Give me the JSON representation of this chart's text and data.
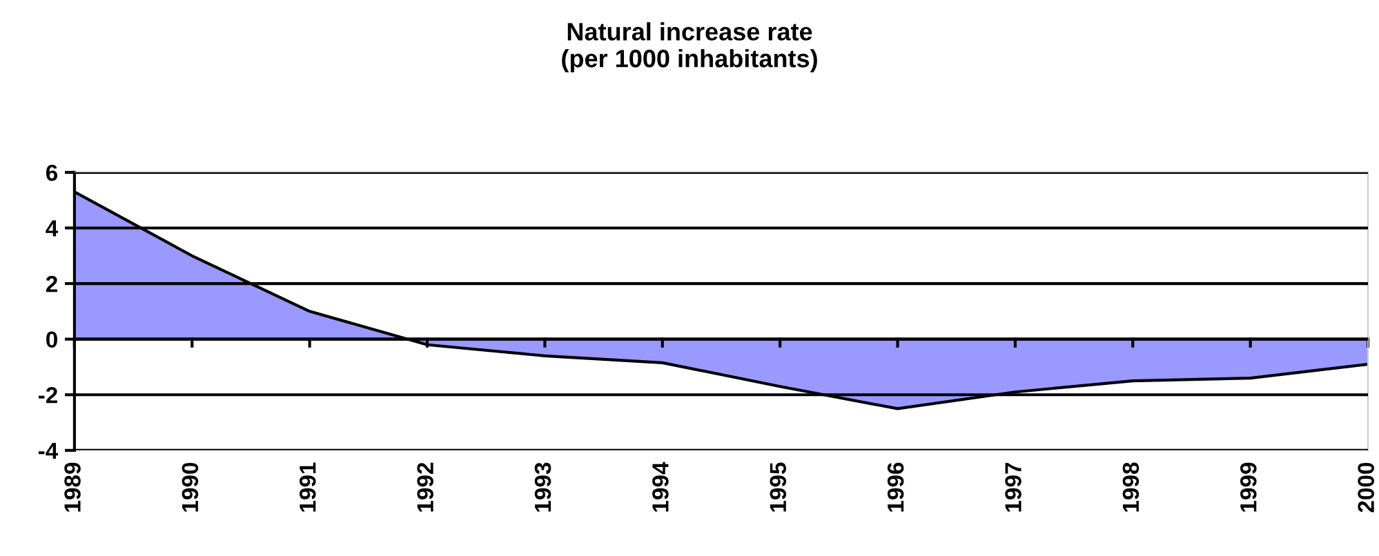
{
  "chart_data": {
    "type": "area",
    "title": "Natural increase rate\n(per 1000 inhabitants)",
    "categories": [
      "1989",
      "1990",
      "1991",
      "1992",
      "1993",
      "1994",
      "1995",
      "1996",
      "1997",
      "1998",
      "1999",
      "2000"
    ],
    "series": [
      {
        "color": "#9999ff",
        "values": [
          5.3,
          3.0,
          1.0,
          -0.2,
          -0.6,
          -0.85,
          -1.7,
          -2.5,
          -1.9,
          -1.5,
          -1.4,
          -0.9
        ]
      }
    ],
    "ylim": [
      -4,
      6
    ],
    "yticks": [
      -4,
      -2,
      0,
      2,
      4,
      6
    ],
    "grid": "y",
    "legend": false
  }
}
